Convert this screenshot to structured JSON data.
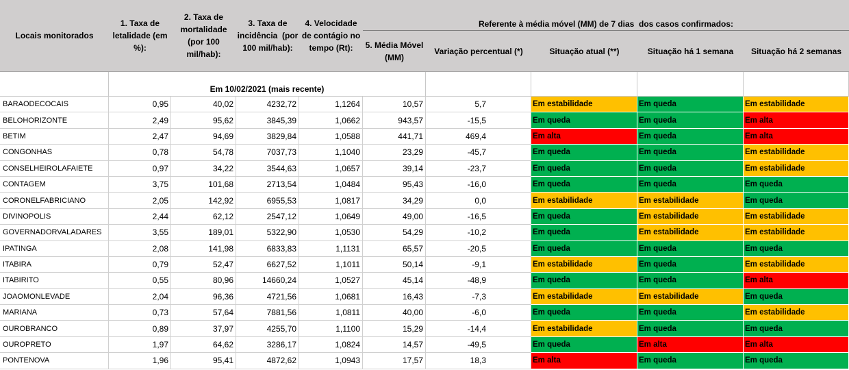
{
  "header": {
    "group_title": "Referente à média móvel (MM) de 7 dias  dos casos confirmados:",
    "columns": [
      {
        "lines": [
          "Locais monitorados"
        ]
      },
      {
        "lines": [
          "1. Taxa de",
          "letalidade (em",
          "%):"
        ]
      },
      {
        "lines": [
          "2. Taxa de",
          "mortalidade",
          "(por 100",
          "mil/hab):"
        ]
      },
      {
        "lines": [
          "3. Taxa de",
          "incidência  (por",
          "100 mil/hab):"
        ]
      },
      {
        "lines": [
          "4. Velocidade",
          "de contágio no",
          "tempo (Rt):"
        ]
      },
      {
        "lines": [
          "5. Média Móvel",
          "(MM)"
        ]
      },
      {
        "lines": [
          "Variação percentual (*)"
        ]
      },
      {
        "lines": [
          "Situação atual (**)"
        ]
      },
      {
        "lines": [
          "Situação há 1 semana"
        ]
      },
      {
        "lines": [
          "Situação há 2 semanas"
        ]
      }
    ]
  },
  "date_label": "Em 10/02/2021 (mais recente)",
  "status_colors": {
    "Em estabilidade": "#ffc000",
    "Em queda": "#00b050",
    "Em alta": "#ff0000"
  },
  "rows": [
    {
      "local": "BARAODECOCAIS",
      "letalidade": "0,95",
      "mortalidade": "40,02",
      "incidencia": "4232,72",
      "rt": "1,1264",
      "media_movel": "10,57",
      "variacao": "5,7",
      "situacao_atual": "Em estabilidade",
      "situacao_1_semana": "Em queda",
      "situacao_2_semanas": "Em estabilidade"
    },
    {
      "local": "BELOHORIZONTE",
      "letalidade": "2,49",
      "mortalidade": "95,62",
      "incidencia": "3845,39",
      "rt": "1,0662",
      "media_movel": "943,57",
      "variacao": "-15,5",
      "situacao_atual": "Em queda",
      "situacao_1_semana": "Em queda",
      "situacao_2_semanas": "Em alta"
    },
    {
      "local": "BETIM",
      "letalidade": "2,47",
      "mortalidade": "94,69",
      "incidencia": "3829,84",
      "rt": "1,0588",
      "media_movel": "441,71",
      "variacao": "469,4",
      "situacao_atual": "Em alta",
      "situacao_1_semana": "Em queda",
      "situacao_2_semanas": "Em alta"
    },
    {
      "local": "CONGONHAS",
      "letalidade": "0,78",
      "mortalidade": "54,78",
      "incidencia": "7037,73",
      "rt": "1,1040",
      "media_movel": "23,29",
      "variacao": "-45,7",
      "situacao_atual": "Em queda",
      "situacao_1_semana": "Em queda",
      "situacao_2_semanas": "Em estabilidade"
    },
    {
      "local": "CONSELHEIROLAFAIETE",
      "letalidade": "0,97",
      "mortalidade": "34,22",
      "incidencia": "3544,63",
      "rt": "1,0657",
      "media_movel": "39,14",
      "variacao": "-23,7",
      "situacao_atual": "Em queda",
      "situacao_1_semana": "Em queda",
      "situacao_2_semanas": "Em estabilidade"
    },
    {
      "local": "CONTAGEM",
      "letalidade": "3,75",
      "mortalidade": "101,68",
      "incidencia": "2713,54",
      "rt": "1,0484",
      "media_movel": "95,43",
      "variacao": "-16,0",
      "situacao_atual": "Em queda",
      "situacao_1_semana": "Em queda",
      "situacao_2_semanas": "Em queda"
    },
    {
      "local": "CORONELFABRICIANO",
      "letalidade": "2,05",
      "mortalidade": "142,92",
      "incidencia": "6955,53",
      "rt": "1,0817",
      "media_movel": "34,29",
      "variacao": "0,0",
      "situacao_atual": "Em estabilidade",
      "situacao_1_semana": "Em estabilidade",
      "situacao_2_semanas": "Em queda"
    },
    {
      "local": "DIVINOPOLIS",
      "letalidade": "2,44",
      "mortalidade": "62,12",
      "incidencia": "2547,12",
      "rt": "1,0649",
      "media_movel": "49,00",
      "variacao": "-16,5",
      "situacao_atual": "Em queda",
      "situacao_1_semana": "Em estabilidade",
      "situacao_2_semanas": "Em estabilidade"
    },
    {
      "local": "GOVERNADORVALADARES",
      "letalidade": "3,55",
      "mortalidade": "189,01",
      "incidencia": "5322,90",
      "rt": "1,0530",
      "media_movel": "54,29",
      "variacao": "-10,2",
      "situacao_atual": "Em queda",
      "situacao_1_semana": "Em estabilidade",
      "situacao_2_semanas": "Em estabilidade"
    },
    {
      "local": "IPATINGA",
      "letalidade": "2,08",
      "mortalidade": "141,98",
      "incidencia": "6833,83",
      "rt": "1,1131",
      "media_movel": "65,57",
      "variacao": "-20,5",
      "situacao_atual": "Em queda",
      "situacao_1_semana": "Em queda",
      "situacao_2_semanas": "Em queda"
    },
    {
      "local": "ITABIRA",
      "letalidade": "0,79",
      "mortalidade": "52,47",
      "incidencia": "6627,52",
      "rt": "1,1011",
      "media_movel": "50,14",
      "variacao": "-9,1",
      "situacao_atual": "Em estabilidade",
      "situacao_1_semana": "Em queda",
      "situacao_2_semanas": "Em estabilidade"
    },
    {
      "local": "ITABIRITO",
      "letalidade": "0,55",
      "mortalidade": "80,96",
      "incidencia": "14660,24",
      "rt": "1,0527",
      "media_movel": "45,14",
      "variacao": "-48,9",
      "situacao_atual": "Em queda",
      "situacao_1_semana": "Em queda",
      "situacao_2_semanas": "Em alta"
    },
    {
      "local": "JOAOMONLEVADE",
      "letalidade": "2,04",
      "mortalidade": "96,36",
      "incidencia": "4721,56",
      "rt": "1,0681",
      "media_movel": "16,43",
      "variacao": "-7,3",
      "situacao_atual": "Em estabilidade",
      "situacao_1_semana": "Em estabilidade",
      "situacao_2_semanas": "Em queda"
    },
    {
      "local": "MARIANA",
      "letalidade": "0,73",
      "mortalidade": "57,64",
      "incidencia": "7881,56",
      "rt": "1,0811",
      "media_movel": "40,00",
      "variacao": "-6,0",
      "situacao_atual": "Em queda",
      "situacao_1_semana": "Em queda",
      "situacao_2_semanas": "Em estabilidade"
    },
    {
      "local": "OUROBRANCO",
      "letalidade": "0,89",
      "mortalidade": "37,97",
      "incidencia": "4255,70",
      "rt": "1,1100",
      "media_movel": "15,29",
      "variacao": "-14,4",
      "situacao_atual": "Em estabilidade",
      "situacao_1_semana": "Em queda",
      "situacao_2_semanas": "Em queda"
    },
    {
      "local": "OUROPRETO",
      "letalidade": "1,97",
      "mortalidade": "64,62",
      "incidencia": "3286,17",
      "rt": "1,0824",
      "media_movel": "14,57",
      "variacao": "-49,5",
      "situacao_atual": "Em queda",
      "situacao_1_semana": "Em alta",
      "situacao_2_semanas": "Em alta"
    },
    {
      "local": "PONTENOVA",
      "letalidade": "1,96",
      "mortalidade": "95,41",
      "incidencia": "4872,62",
      "rt": "1,0943",
      "media_movel": "17,57",
      "variacao": "18,3",
      "situacao_atual": "Em alta",
      "situacao_1_semana": "Em queda",
      "situacao_2_semanas": "Em queda"
    }
  ]
}
